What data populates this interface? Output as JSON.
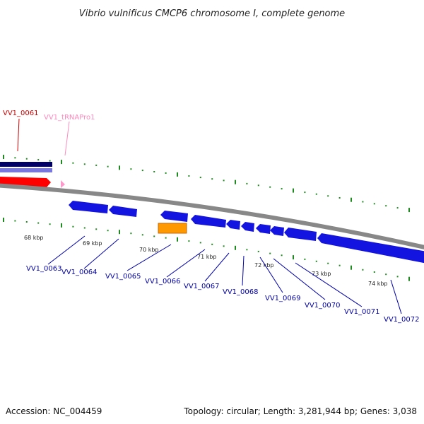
{
  "title": "Vibrio vulnificus CMCP6 chromosome I, complete genome",
  "footer": {
    "accession": "Accession: NC_004459",
    "summary": "Topology: circular; Length: 3,281,944 bp; Genes: 3,038"
  },
  "colors": {
    "backbone": "#888888",
    "tick": "#1f8a1f",
    "forward_gene": "#ff0000",
    "reverse_gene": "#0000ee",
    "trna": "#ff99cc",
    "other_feature": "#ff9900",
    "cds_top": "#000066",
    "cds_bottom": "#7777dd",
    "label_blue": "#0000aa",
    "label_red": "#cc0000",
    "label_pink": "#ff88bb"
  },
  "kbp_labels": [
    "68 kbp",
    "69 kbp",
    "70 kbp",
    "71 kbp",
    "72 kbp",
    "73 kbp",
    "74 kbp"
  ],
  "gene_labels": [
    "VV1_0061",
    "VV1_tRNAPro1",
    "VV1_0063",
    "VV1_0064",
    "VV1_0065",
    "VV1_0066",
    "VV1_0067",
    "VV1_0068",
    "VV1_0069",
    "VV1_0070",
    "VV1_0071",
    "VV1_0072"
  ]
}
